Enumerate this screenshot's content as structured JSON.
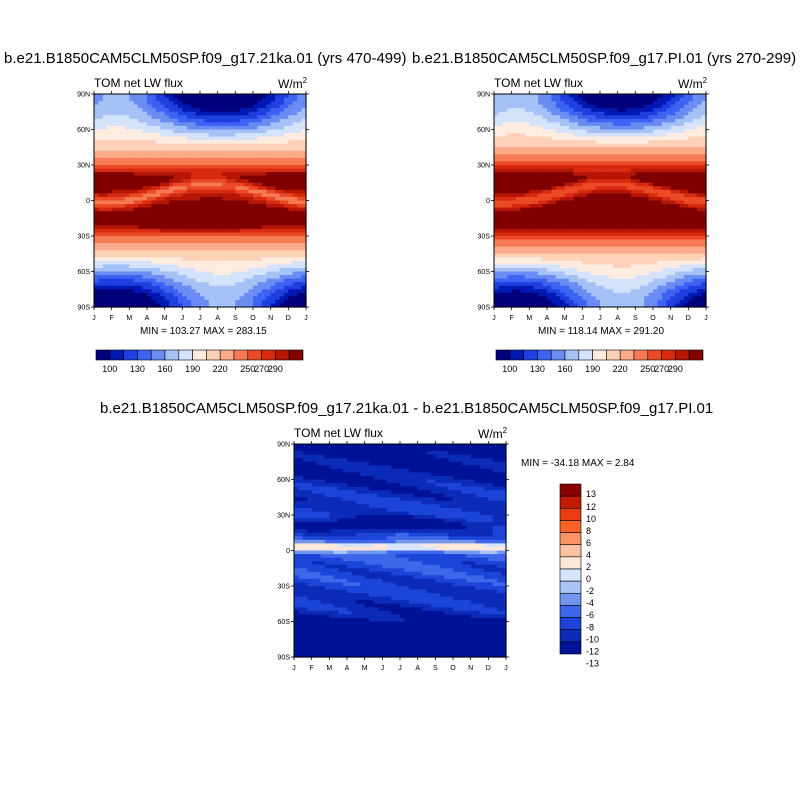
{
  "chart_data": [
    {
      "type": "heatmap",
      "title": "b.e21.B1850CAM5CLM50SP.f09_g17.21ka.01 (yrs 470-499)",
      "left_label": "TOM net LW flux",
      "units": "W/m",
      "units_sup": "2",
      "stats": "MIN = 103.27 MAX = 283.15",
      "min": 103.27,
      "max": 283.15,
      "x_ticks": [
        "J",
        "F",
        "M",
        "A",
        "M",
        "J",
        "J",
        "A",
        "S",
        "O",
        "N",
        "D",
        "J"
      ],
      "y_ticks": [
        "90N",
        "60N",
        "30N",
        "0",
        "30S",
        "60S",
        "90S"
      ],
      "y_values": [
        90,
        60,
        30,
        0,
        -30,
        -60,
        -90
      ],
      "colorbar_labels": [
        "100",
        "130",
        "160",
        "190",
        "220",
        "250",
        "270",
        "290"
      ],
      "colorbar_levels": [
        100,
        115,
        130,
        145,
        160,
        175,
        190,
        205,
        220,
        235,
        250,
        260,
        270,
        280,
        290
      ]
    },
    {
      "type": "heatmap",
      "title": "b.e21.B1850CAM5CLM50SP.f09_g17.PI.01 (yrs 270-299)",
      "left_label": "TOM net LW flux",
      "units": "W/m",
      "units_sup": "2",
      "stats": "MIN = 118.14 MAX = 291.20",
      "min": 118.14,
      "max": 291.2,
      "x_ticks": [
        "J",
        "F",
        "M",
        "A",
        "M",
        "J",
        "J",
        "A",
        "S",
        "O",
        "N",
        "D",
        "J"
      ],
      "y_ticks": [
        "90N",
        "60N",
        "30N",
        "0",
        "30S",
        "60S",
        "90S"
      ],
      "y_values": [
        90,
        60,
        30,
        0,
        -30,
        -60,
        -90
      ],
      "colorbar_labels": [
        "100",
        "130",
        "160",
        "190",
        "220",
        "250",
        "270",
        "290"
      ],
      "colorbar_levels": [
        100,
        115,
        130,
        145,
        160,
        175,
        190,
        205,
        220,
        235,
        250,
        260,
        270,
        280,
        290
      ]
    },
    {
      "type": "heatmap",
      "title": "b.e21.B1850CAM5CLM50SP.f09_g17.21ka.01 - b.e21.B1850CAM5CLM50SP.f09_g17.PI.01",
      "left_label": "TOM net LW flux",
      "units": "W/m",
      "units_sup": "2",
      "stats": "MIN = -34.18 MAX =   2.84",
      "min": -34.18,
      "max": 2.84,
      "x_ticks": [
        "J",
        "F",
        "M",
        "A",
        "M",
        "J",
        "J",
        "A",
        "S",
        "O",
        "N",
        "D",
        "J"
      ],
      "y_ticks": [
        "90N",
        "60N",
        "30N",
        "0",
        "30S",
        "60S",
        "90S"
      ],
      "y_values": [
        90,
        60,
        30,
        0,
        -30,
        -60,
        -90
      ],
      "colorbar_labels": [
        "13",
        "12",
        "10",
        "8",
        "6",
        "4",
        "2",
        "0",
        "-2",
        "-4",
        "-6",
        "-8",
        "-10",
        "-12",
        "-13"
      ],
      "colorbar_levels": [
        13,
        12,
        10,
        8,
        6,
        4,
        2,
        0,
        -2,
        -4,
        -6,
        -8,
        -10,
        -12,
        -13
      ]
    }
  ],
  "colors": {
    "palette": [
      "#00007d",
      "#0019b3",
      "#1f3fe0",
      "#3d63f2",
      "#6b8cf2",
      "#a5c1f5",
      "#d5e3fa",
      "#ffece0",
      "#fdd0b8",
      "#fbab8a",
      "#f67b55",
      "#ea4a26",
      "#d72a10",
      "#b51606",
      "#800000"
    ],
    "diff_palette": [
      "#8b0000",
      "#c31a04",
      "#e83c11",
      "#f86328",
      "#fb9265",
      "#fdc1a1",
      "#fee7d9",
      "#d6e5fb",
      "#a8c3f4",
      "#7196ee",
      "#3f67e9",
      "#1d44d8",
      "#0b2bb8",
      "#001295"
    ]
  }
}
